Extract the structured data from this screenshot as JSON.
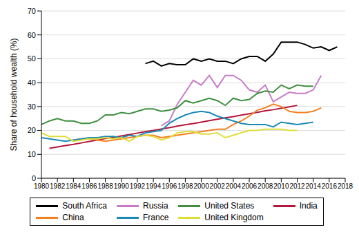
{
  "chart_data": {
    "type": "line",
    "y_label": "Share of household wealth (%)",
    "x": [
      1980,
      1981,
      1982,
      1983,
      1984,
      1985,
      1986,
      1987,
      1988,
      1989,
      1990,
      1991,
      1992,
      1993,
      1994,
      1995,
      1996,
      1997,
      1998,
      1999,
      2000,
      2001,
      2002,
      2003,
      2004,
      2005,
      2006,
      2007,
      2008,
      2009,
      2010,
      2011,
      2012,
      2013,
      2014,
      2015,
      2016,
      2017
    ],
    "xlim": [
      1980,
      2018
    ],
    "xticks": [
      1980,
      1982,
      1984,
      1986,
      1988,
      1990,
      1992,
      1994,
      1996,
      1998,
      2000,
      2002,
      2004,
      2006,
      2008,
      2010,
      2012,
      2014,
      2016,
      2018
    ],
    "ylim": [
      0,
      70
    ],
    "yticks": [
      0,
      10,
      20,
      30,
      40,
      50,
      60,
      70
    ],
    "grid": true,
    "legend": "bottom",
    "series": [
      {
        "name": "South Africa",
        "color": "#000000",
        "values": [
          null,
          null,
          null,
          null,
          null,
          null,
          null,
          null,
          null,
          null,
          null,
          null,
          null,
          48,
          49,
          47,
          48,
          47.5,
          47.5,
          50,
          49,
          50,
          49,
          49,
          48,
          50,
          51,
          51,
          49,
          52,
          57,
          57,
          57,
          56,
          54.5,
          55,
          53.5,
          55
        ]
      },
      {
        "name": "Russia",
        "color": "#c77cc9",
        "values": [
          null,
          null,
          null,
          null,
          null,
          null,
          null,
          null,
          null,
          null,
          null,
          null,
          null,
          null,
          null,
          22,
          24,
          31,
          36,
          41,
          39,
          43,
          38,
          43,
          43,
          41,
          37,
          36,
          39,
          32,
          34,
          36,
          35.5,
          35.5,
          37,
          43,
          null,
          null
        ]
      },
      {
        "name": "United States",
        "color": "#3f8f3f",
        "values": [
          22.5,
          24,
          25,
          24,
          24,
          23,
          23,
          24,
          26.5,
          26.5,
          27.5,
          27,
          28,
          29,
          29,
          28,
          28.5,
          29.5,
          32.5,
          31.5,
          32.5,
          33.5,
          32.5,
          30.5,
          33.5,
          32.5,
          33,
          35.5,
          36.5,
          36,
          39,
          37.5,
          39,
          38.5,
          38.5,
          null,
          null,
          null
        ]
      },
      {
        "name": "India",
        "color": "#b5163a",
        "values": [
          null,
          12.5,
          13.1,
          13.7,
          14.2,
          14.8,
          15.4,
          16.0,
          16.6,
          17.1,
          17.7,
          18.3,
          18.9,
          19.5,
          20.0,
          20.6,
          21.2,
          21.8,
          22.4,
          22.9,
          23.5,
          24.1,
          24.7,
          25.3,
          25.8,
          26.4,
          27.0,
          27.6,
          28.2,
          28.7,
          29.3,
          29.9,
          30.5,
          null,
          null,
          null,
          null,
          null
        ]
      },
      {
        "name": "China",
        "color": "#f28020",
        "values": [
          null,
          null,
          null,
          null,
          16,
          16.5,
          16.5,
          16,
          15.5,
          16,
          16.5,
          17,
          17.5,
          18,
          18,
          17,
          17.5,
          18,
          18.5,
          19,
          19.5,
          20,
          20.5,
          20.5,
          22.5,
          24,
          26,
          28.5,
          29.5,
          31,
          30,
          28,
          27.5,
          27.5,
          28,
          29.5,
          null,
          null
        ]
      },
      {
        "name": "France",
        "color": "#1b8ab7",
        "values": [
          17,
          16.5,
          16,
          15.5,
          16,
          16.5,
          17,
          17,
          17.5,
          17.5,
          17,
          18,
          17.5,
          19,
          19.5,
          20,
          23,
          25,
          26.5,
          27.5,
          28,
          27.5,
          26,
          25,
          24,
          23,
          22.5,
          22.5,
          22.5,
          21.5,
          23.5,
          23,
          22.5,
          23,
          23.5,
          null,
          null,
          null
        ]
      },
      {
        "name": "United Kingdom",
        "color": "#dede3a",
        "values": [
          19,
          17.5,
          17.5,
          17.5,
          15.5,
          16,
          16.5,
          16.5,
          17,
          16.5,
          17,
          15.5,
          17.5,
          18,
          17.5,
          16,
          17,
          19,
          19.5,
          19.5,
          18.5,
          18.5,
          19,
          17,
          18,
          19,
          20,
          20,
          20.5,
          20.5,
          20.5,
          20,
          20,
          null,
          null,
          null,
          null,
          null
        ]
      }
    ]
  }
}
